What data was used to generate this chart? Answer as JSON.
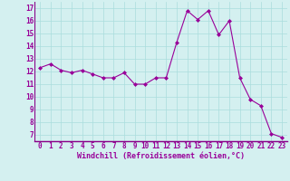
{
  "x": [
    0,
    1,
    2,
    3,
    4,
    5,
    6,
    7,
    8,
    9,
    10,
    11,
    12,
    13,
    14,
    15,
    16,
    17,
    18,
    19,
    20,
    21,
    22,
    23
  ],
  "y": [
    12.3,
    12.6,
    12.1,
    11.9,
    12.1,
    11.8,
    11.5,
    11.5,
    11.9,
    11.0,
    11.0,
    11.5,
    11.5,
    14.3,
    16.8,
    16.1,
    16.8,
    14.9,
    16.0,
    11.5,
    9.8,
    9.3,
    7.1,
    6.8
  ],
  "line_color": "#990099",
  "marker": "D",
  "marker_size": 2.0,
  "bg_color": "#d4f0f0",
  "grid_color": "#aadddd",
  "xlabel": "Windchill (Refroidissement éolien,°C)",
  "xlabel_color": "#990099",
  "ylabel_ticks": [
    7,
    8,
    9,
    10,
    11,
    12,
    13,
    14,
    15,
    16,
    17
  ],
  "xticks": [
    0,
    1,
    2,
    3,
    4,
    5,
    6,
    7,
    8,
    9,
    10,
    11,
    12,
    13,
    14,
    15,
    16,
    17,
    18,
    19,
    20,
    21,
    22,
    23
  ],
  "ylim": [
    6.5,
    17.5
  ],
  "xlim": [
    -0.5,
    23.5
  ],
  "tick_fontsize": 5.5,
  "xlabel_fontsize": 6.0,
  "line_width": 0.8,
  "separator_color": "#880088"
}
